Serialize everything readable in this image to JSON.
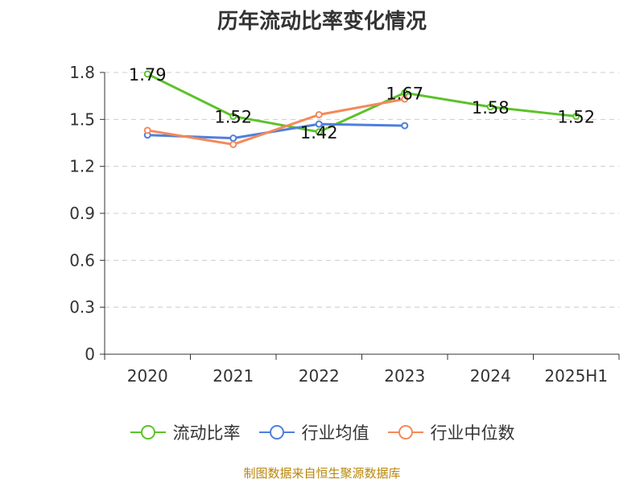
{
  "title": "历年流动比率变化情况",
  "source": "制图数据来自恒生聚源数据库",
  "colors": {
    "current_ratio": "#5cc22a",
    "industry_mean": "#4f7fdc",
    "industry_median": "#f4895a",
    "grid": "#cccccc",
    "axis": "#333333"
  },
  "chart_data": {
    "type": "line",
    "title": "历年流动比率变化情况",
    "xlabel": "",
    "ylabel": "",
    "categories": [
      "2020",
      "2021",
      "2022",
      "2023",
      "2024",
      "2025H1"
    ],
    "y_ticks": [
      "0",
      "0.3",
      "0.6",
      "0.9",
      "1.2",
      "1.5",
      "1.8"
    ],
    "ylim": [
      0,
      1.8
    ],
    "grid": true,
    "legend_position": "bottom",
    "series": [
      {
        "name": "流动比率",
        "values": [
          1.79,
          1.52,
          1.42,
          1.67,
          1.58,
          1.52
        ],
        "labels": [
          "1.79",
          "1.52",
          "1.42",
          "1.67",
          "1.58",
          "1.52"
        ],
        "show_labels": true,
        "color_key": "current_ratio"
      },
      {
        "name": "行业均值",
        "values": [
          1.4,
          1.38,
          1.47,
          1.46,
          null,
          null
        ],
        "show_labels": false,
        "color_key": "industry_mean"
      },
      {
        "name": "行业中位数",
        "values": [
          1.43,
          1.34,
          1.53,
          1.63,
          null,
          null
        ],
        "show_labels": false,
        "color_key": "industry_median"
      }
    ]
  }
}
